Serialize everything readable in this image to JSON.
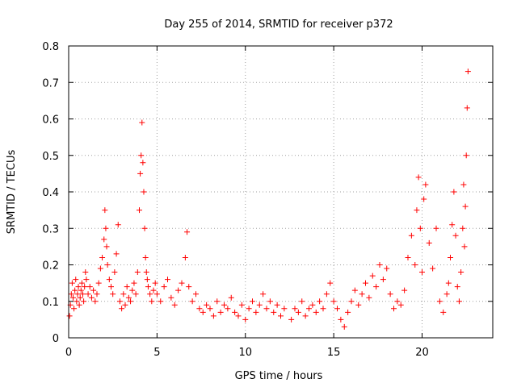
{
  "chart_data": {
    "type": "scatter",
    "title": "Day 255 of 2014, SRMTID for receiver p372",
    "xlabel": "GPS time / hours",
    "ylabel": "SRMTID / TECUs",
    "xlim": [
      0,
      24
    ],
    "ylim": [
      0,
      0.8
    ],
    "grid": true,
    "marker": "+",
    "color": "#ff0000",
    "xticks": [
      0,
      5,
      10,
      15,
      20
    ],
    "xtick_labels": [
      "0",
      "5",
      "10",
      "15",
      "20"
    ],
    "yticks": [
      0,
      0.1,
      0.2,
      0.3,
      0.4,
      0.5,
      0.6,
      0.7,
      0.8
    ],
    "ytick_labels": [
      "0",
      "0.1",
      "0.2",
      "0.3",
      "0.4",
      "0.5",
      "0.6",
      "0.7",
      "0.8"
    ],
    "series": [
      {
        "name": "SRMTID",
        "x": [
          0.05,
          0.1,
          0.15,
          0.2,
          0.25,
          0.3,
          0.35,
          0.4,
          0.45,
          0.5,
          0.55,
          0.6,
          0.65,
          0.7,
          0.75,
          0.8,
          0.85,
          0.9,
          0.95,
          1.0,
          1.1,
          1.2,
          1.3,
          1.4,
          1.5,
          1.6,
          1.7,
          1.8,
          1.9,
          2.0,
          2.05,
          2.1,
          2.15,
          2.2,
          2.3,
          2.4,
          2.5,
          2.6,
          2.7,
          2.8,
          2.9,
          3.0,
          3.1,
          3.2,
          3.3,
          3.4,
          3.5,
          3.6,
          3.7,
          3.8,
          3.9,
          4.0,
          4.05,
          4.1,
          4.15,
          4.2,
          4.25,
          4.3,
          4.35,
          4.4,
          4.45,
          4.5,
          4.6,
          4.7,
          4.8,
          4.9,
          5.0,
          5.2,
          5.4,
          5.6,
          5.8,
          6.0,
          6.2,
          6.4,
          6.6,
          6.7,
          6.8,
          7.0,
          7.2,
          7.4,
          7.6,
          7.8,
          8.0,
          8.2,
          8.4,
          8.6,
          8.8,
          9.0,
          9.2,
          9.4,
          9.6,
          9.8,
          10.0,
          10.2,
          10.4,
          10.6,
          10.8,
          11.0,
          11.2,
          11.4,
          11.6,
          11.8,
          12.0,
          12.2,
          12.6,
          12.8,
          13.0,
          13.2,
          13.4,
          13.6,
          13.8,
          14.0,
          14.2,
          14.4,
          14.6,
          14.8,
          15.0,
          15.2,
          15.4,
          15.6,
          15.8,
          16.0,
          16.2,
          16.4,
          16.6,
          16.8,
          17.0,
          17.2,
          17.4,
          17.6,
          17.8,
          18.0,
          18.2,
          18.4,
          18.6,
          18.8,
          19.0,
          19.2,
          19.4,
          19.6,
          19.7,
          19.8,
          19.9,
          20.0,
          20.1,
          20.2,
          20.4,
          20.6,
          20.8,
          21.0,
          21.2,
          21.4,
          21.5,
          21.6,
          21.7,
          21.8,
          21.9,
          22.0,
          22.1,
          22.2,
          22.3,
          22.35,
          22.4,
          22.45,
          22.5,
          22.55,
          22.6
        ],
        "y": [
          0.06,
          0.09,
          0.12,
          0.15,
          0.11,
          0.08,
          0.13,
          0.16,
          0.1,
          0.12,
          0.14,
          0.09,
          0.11,
          0.13,
          0.15,
          0.12,
          0.1,
          0.14,
          0.18,
          0.16,
          0.12,
          0.14,
          0.11,
          0.13,
          0.1,
          0.12,
          0.15,
          0.19,
          0.22,
          0.27,
          0.35,
          0.3,
          0.25,
          0.2,
          0.16,
          0.14,
          0.12,
          0.18,
          0.23,
          0.31,
          0.1,
          0.08,
          0.12,
          0.09,
          0.14,
          0.11,
          0.1,
          0.13,
          0.15,
          0.12,
          0.18,
          0.35,
          0.45,
          0.5,
          0.59,
          0.48,
          0.4,
          0.3,
          0.22,
          0.18,
          0.16,
          0.14,
          0.12,
          0.1,
          0.13,
          0.15,
          0.12,
          0.1,
          0.14,
          0.16,
          0.11,
          0.09,
          0.13,
          0.15,
          0.22,
          0.29,
          0.14,
          0.1,
          0.12,
          0.08,
          0.07,
          0.09,
          0.08,
          0.06,
          0.1,
          0.07,
          0.09,
          0.08,
          0.11,
          0.07,
          0.06,
          0.09,
          0.05,
          0.08,
          0.1,
          0.07,
          0.09,
          0.12,
          0.08,
          0.1,
          0.07,
          0.09,
          0.06,
          0.08,
          0.05,
          0.08,
          0.07,
          0.1,
          0.06,
          0.08,
          0.09,
          0.07,
          0.1,
          0.08,
          0.12,
          0.15,
          0.1,
          0.08,
          0.05,
          0.03,
          0.07,
          0.1,
          0.13,
          0.09,
          0.12,
          0.15,
          0.11,
          0.17,
          0.14,
          0.2,
          0.16,
          0.19,
          0.12,
          0.08,
          0.1,
          0.09,
          0.13,
          0.22,
          0.28,
          0.2,
          0.35,
          0.44,
          0.3,
          0.18,
          0.38,
          0.42,
          0.26,
          0.19,
          0.3,
          0.1,
          0.07,
          0.12,
          0.15,
          0.22,
          0.31,
          0.4,
          0.28,
          0.14,
          0.1,
          0.18,
          0.3,
          0.42,
          0.25,
          0.36,
          0.5,
          0.63,
          0.73
        ]
      }
    ]
  }
}
